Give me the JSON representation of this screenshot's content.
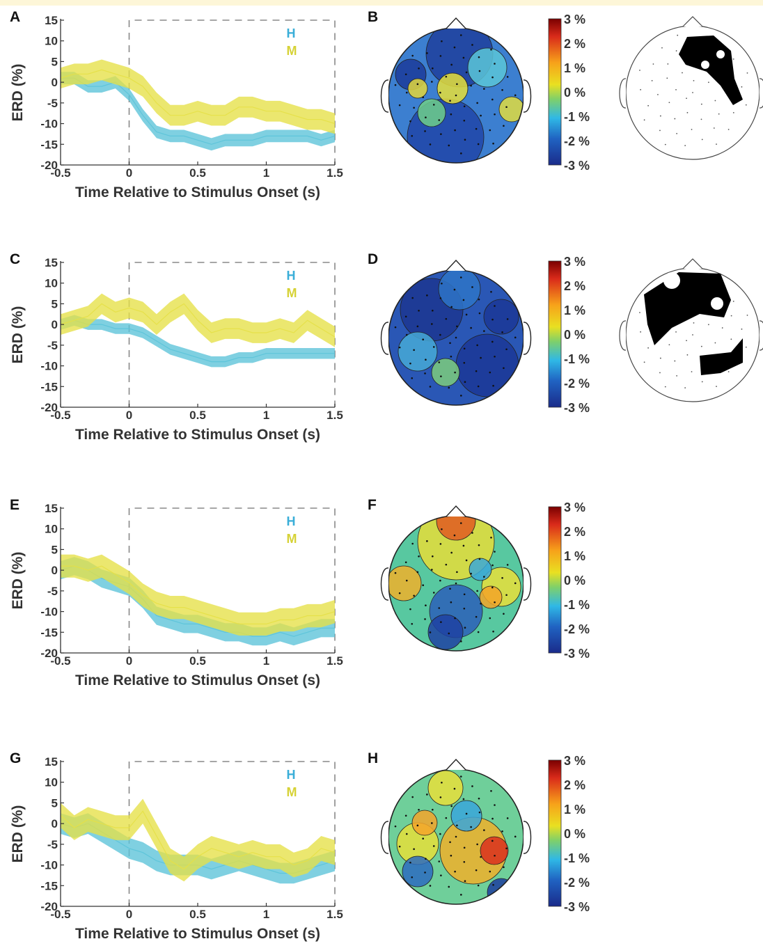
{
  "colors": {
    "h_series": "#5bc3d9",
    "m_series": "#e6e046",
    "h_label": "#3aaed8",
    "m_label": "#d6d236",
    "axis": "#333333",
    "stim_box": "#888888"
  },
  "chart_data": [
    {
      "panel": "A",
      "type": "line",
      "xlabel": "Time Relative to Stimulus Onset (s)",
      "ylabel": "ERD (%)",
      "xlim": [
        -0.5,
        1.5
      ],
      "ylim": [
        -20,
        15
      ],
      "xticks": [
        "-0.5",
        "0",
        "0.5",
        "1",
        "1.5"
      ],
      "yticks": [
        "15",
        "10",
        "5",
        "0",
        "-5",
        "-10",
        "-15",
        "-20"
      ],
      "stimulus_window": [
        0,
        1.5
      ],
      "x": [
        -0.5,
        -0.4,
        -0.3,
        -0.2,
        -0.1,
        0.0,
        0.1,
        0.2,
        0.3,
        0.4,
        0.5,
        0.6,
        0.7,
        0.8,
        0.9,
        1.0,
        1.1,
        1.2,
        1.3,
        1.4,
        1.5
      ],
      "series": [
        {
          "name": "H",
          "mean": [
            1,
            1,
            -1,
            -1,
            0,
            -3,
            -8,
            -12,
            -13,
            -13,
            -14,
            -15,
            -14,
            -14,
            -14,
            -13,
            -13,
            -13,
            -13,
            -14,
            -13
          ],
          "halfwidth": 1.5
        },
        {
          "name": "M",
          "mean": [
            1,
            2,
            2,
            3,
            2,
            1,
            -1,
            -5,
            -8,
            -8,
            -7,
            -8,
            -8,
            -6,
            -6,
            -7,
            -7,
            -8,
            -9,
            -9,
            -10
          ],
          "halfwidth": 2.5
        }
      ]
    },
    {
      "panel": "C",
      "type": "line",
      "xlabel": "Time Relative to Stimulus Onset (s)",
      "ylabel": "ERD (%)",
      "xlim": [
        -0.5,
        1.5
      ],
      "ylim": [
        -20,
        15
      ],
      "xticks": [
        "-0.5",
        "0",
        "0.5",
        "1",
        "1.5"
      ],
      "yticks": [
        "15",
        "10",
        "5",
        "0",
        "-5",
        "-10",
        "-15",
        "-20"
      ],
      "stimulus_window": [
        0,
        1.5
      ],
      "x": [
        -0.5,
        -0.4,
        -0.3,
        -0.2,
        -0.1,
        0.0,
        0.1,
        0.2,
        0.3,
        0.4,
        0.5,
        0.6,
        0.7,
        0.8,
        0.9,
        1.0,
        1.1,
        1.2,
        1.3,
        1.4,
        1.5
      ],
      "series": [
        {
          "name": "H",
          "mean": [
            0,
            1,
            0,
            0,
            -1,
            -1,
            -2,
            -4,
            -6,
            -7,
            -8,
            -9,
            -9,
            -8,
            -8,
            -7,
            -7,
            -7,
            -7,
            -7,
            -7
          ],
          "halfwidth": 1.3
        },
        {
          "name": "M",
          "mean": [
            0,
            1,
            2,
            5,
            3,
            4,
            3,
            0,
            3,
            5,
            1,
            -2,
            -1,
            -1,
            -2,
            -2,
            -1,
            -2,
            1,
            -1,
            -3
          ],
          "halfwidth": 2.5
        }
      ]
    },
    {
      "panel": "E",
      "type": "line",
      "xlabel": "Time Relative to Stimulus Onset (s)",
      "ylabel": "ERD (%)",
      "xlim": [
        -0.5,
        1.5
      ],
      "ylim": [
        -20,
        15
      ],
      "xticks": [
        "-0.5",
        "0",
        "0.5",
        "1",
        "1.5"
      ],
      "yticks": [
        "15",
        "10",
        "5",
        "0",
        "-5",
        "-10",
        "-15",
        "-20"
      ],
      "stimulus_window": [
        0,
        1.5
      ],
      "x": [
        -0.5,
        -0.4,
        -0.3,
        -0.2,
        -0.1,
        0.0,
        0.1,
        0.2,
        0.3,
        0.4,
        0.5,
        0.6,
        0.7,
        0.8,
        0.9,
        1.0,
        1.1,
        1.2,
        1.3,
        1.4,
        1.5
      ],
      "series": [
        {
          "name": "H",
          "mean": [
            0,
            1,
            0,
            -2,
            -3,
            -4,
            -7,
            -11,
            -12,
            -13,
            -13,
            -14,
            -15,
            -15,
            -16,
            -16,
            -15,
            -16,
            -15,
            -14,
            -14
          ],
          "halfwidth": 2.2
        },
        {
          "name": "M",
          "mean": [
            1,
            1,
            0,
            1,
            -1,
            -3,
            -6,
            -8,
            -9,
            -9,
            -10,
            -11,
            -12,
            -13,
            -13,
            -13,
            -12,
            -12,
            -11,
            -11,
            -10
          ],
          "halfwidth": 2.8
        }
      ]
    },
    {
      "panel": "G",
      "type": "line",
      "xlabel": "Time Relative to Stimulus Onset (s)",
      "ylabel": "ERD (%)",
      "xlim": [
        -0.5,
        1.5
      ],
      "ylim": [
        -20,
        15
      ],
      "xticks": [
        "-0.5",
        "0",
        "0.5",
        "1",
        "1.5"
      ],
      "yticks": [
        "15",
        "10",
        "5",
        "0",
        "-5",
        "-10",
        "-15",
        "-20"
      ],
      "stimulus_window": [
        0,
        1.5
      ],
      "x": [
        -0.5,
        -0.4,
        -0.3,
        -0.2,
        -0.1,
        0.0,
        0.1,
        0.2,
        0.3,
        0.4,
        0.5,
        0.6,
        0.7,
        0.8,
        0.9,
        1.0,
        1.1,
        1.2,
        1.3,
        1.4,
        1.5
      ],
      "series": [
        {
          "name": "H",
          "mean": [
            0,
            -1,
            0,
            -2,
            -4,
            -6,
            -7,
            -9,
            -10,
            -10,
            -10,
            -11,
            -10,
            -9,
            -10,
            -11,
            -12,
            -12,
            -11,
            -10,
            -9
          ],
          "halfwidth": 2.5
        },
        {
          "name": "M",
          "mean": [
            2,
            -1,
            1,
            0,
            -1,
            -1,
            3,
            -3,
            -9,
            -11,
            -8,
            -6,
            -7,
            -8,
            -7,
            -8,
            -8,
            -10,
            -9,
            -6,
            -7
          ],
          "halfwidth": 3.0
        }
      ]
    }
  ],
  "panels": {
    "A": "A",
    "B": "B",
    "C": "C",
    "D": "D",
    "E": "E",
    "F": "F",
    "G": "G",
    "H": "H"
  },
  "legend": {
    "h": "H",
    "m": "M"
  },
  "topomaps": [
    {
      "panel": "B",
      "pattern": "mostly-blue",
      "mask": "frontal-right"
    },
    {
      "panel": "D",
      "pattern": "deep-blue",
      "mask": "frontal-left-and-right"
    },
    {
      "panel": "F",
      "pattern": "mixed-red-frontal",
      "mask": null
    },
    {
      "panel": "H",
      "pattern": "mixed-red-central",
      "mask": null
    }
  ],
  "colorbar": {
    "ticks": [
      "3 %",
      "2 %",
      "1 %",
      "0 %",
      "-1 %",
      "-2 %",
      "-3 %"
    ],
    "range": [
      -3,
      3
    ],
    "colormap": "jet"
  }
}
